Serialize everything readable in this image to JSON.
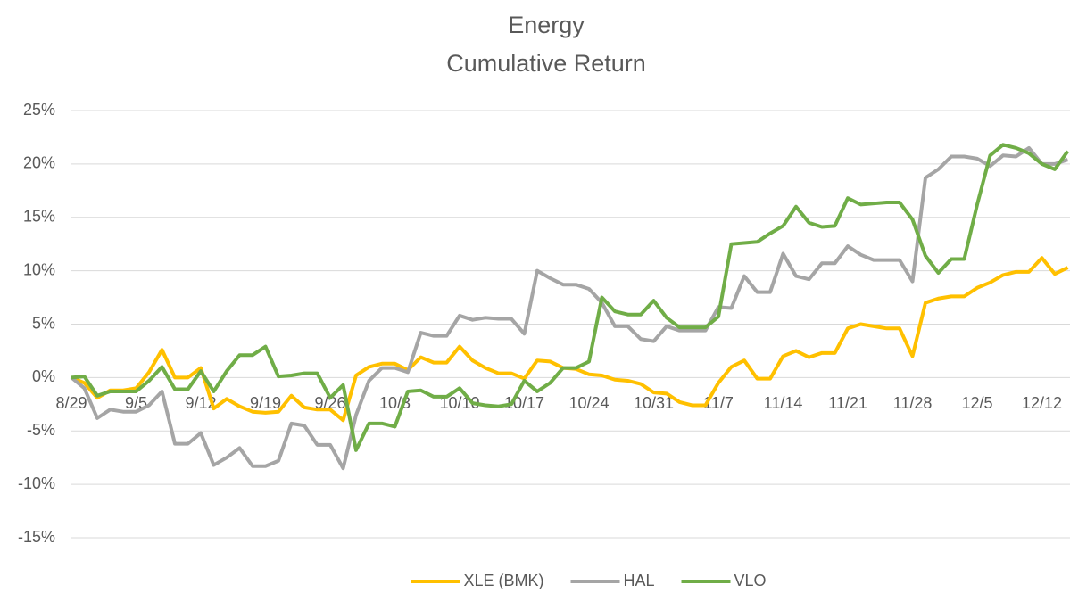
{
  "chart_data": {
    "type": "line",
    "title": "Energy",
    "subtitle": "Cumulative Return",
    "categories": [
      "8/29",
      null,
      null,
      null,
      null,
      "9/5",
      null,
      null,
      null,
      null,
      "9/12",
      null,
      null,
      null,
      null,
      "9/19",
      null,
      null,
      null,
      null,
      "9/26",
      null,
      null,
      null,
      null,
      "10/3",
      null,
      null,
      null,
      null,
      "10/10",
      null,
      null,
      null,
      null,
      "10/17",
      null,
      null,
      null,
      null,
      "10/24",
      null,
      null,
      null,
      null,
      "10/31",
      null,
      null,
      null,
      null,
      "11/7",
      null,
      null,
      null,
      null,
      "11/14",
      null,
      null,
      null,
      null,
      "11/21",
      null,
      null,
      null,
      null,
      "11/28",
      null,
      null,
      null,
      null,
      "12/5",
      null,
      null,
      null,
      null,
      "12/12",
      null,
      null
    ],
    "series": [
      {
        "name": "XLE (BMK)",
        "color": "#ffc000",
        "values": [
          0,
          -0.5,
          -1.9,
          -1.2,
          -1.2,
          -1.0,
          0.5,
          2.6,
          0,
          0,
          0.9,
          -2.9,
          -2.0,
          -2.7,
          -3.2,
          -3.3,
          -3.2,
          -1.7,
          -2.8,
          -3.0,
          -3.0,
          -4.0,
          0.2,
          1.0,
          1.3,
          1.3,
          0.7,
          1.9,
          1.4,
          1.4,
          2.9,
          1.6,
          0.9,
          0.4,
          0.4,
          -0.1,
          1.6,
          1.5,
          0.9,
          0.8,
          0.3,
          0.2,
          -0.2,
          -0.3,
          -0.6,
          -1.4,
          -1.5,
          -2.3,
          -2.6,
          -2.6,
          -0.5,
          1.0,
          1.6,
          -0.1,
          -0.1,
          2.0,
          2.5,
          1.9,
          2.3,
          2.3,
          4.6,
          5.0,
          4.8,
          4.6,
          4.6,
          2.0,
          7.0,
          7.4,
          7.6,
          7.6,
          8.4,
          8.9,
          9.6,
          9.9,
          9.9,
          11.2,
          9.7,
          10.3
        ]
      },
      {
        "name": "HAL",
        "color": "#a5a5a5",
        "values": [
          0,
          -1,
          -3.8,
          -3.0,
          -3.2,
          -3.2,
          -2.6,
          -1.3,
          -6.2,
          -6.2,
          -5.2,
          -8.2,
          -7.5,
          -6.6,
          -8.3,
          -8.3,
          -7.8,
          -4.3,
          -4.5,
          -6.3,
          -6.3,
          -8.5,
          -3.5,
          -0.3,
          0.9,
          0.9,
          0.5,
          4.2,
          3.9,
          3.9,
          5.8,
          5.4,
          5.6,
          5.5,
          5.5,
          4.1,
          10.0,
          9.3,
          8.7,
          8.7,
          8.3,
          7.0,
          4.8,
          4.8,
          3.6,
          3.4,
          4.8,
          4.4,
          4.4,
          4.4,
          6.6,
          6.5,
          9.5,
          8.0,
          8.0,
          11.6,
          9.5,
          9.2,
          10.7,
          10.7,
          12.3,
          11.5,
          11.0,
          11.0,
          11.0,
          9.0,
          18.7,
          19.5,
          20.7,
          20.7,
          20.5,
          19.8,
          20.8,
          20.7,
          21.5,
          20.0,
          20.0,
          20.4
        ]
      },
      {
        "name": "VLO",
        "color": "#70ad47",
        "values": [
          0,
          0.1,
          -1.7,
          -1.3,
          -1.3,
          -1.3,
          -0.3,
          1.0,
          -1.1,
          -1.1,
          0.6,
          -1.3,
          0.6,
          2.1,
          2.1,
          2.9,
          0.1,
          0.2,
          0.4,
          0.4,
          -1.9,
          -0.7,
          -6.8,
          -4.3,
          -4.3,
          -4.6,
          -1.3,
          -1.2,
          -1.8,
          -1.8,
          -1.0,
          -2.4,
          -2.6,
          -2.7,
          -2.5,
          -0.3,
          -1.3,
          -0.5,
          0.9,
          0.9,
          1.5,
          7.5,
          6.2,
          5.9,
          5.9,
          7.2,
          5.6,
          4.7,
          4.7,
          4.7,
          5.7,
          12.5,
          12.6,
          12.7,
          13.5,
          14.2,
          16.0,
          14.5,
          14.1,
          14.2,
          16.8,
          16.2,
          16.3,
          16.4,
          16.4,
          14.8,
          11.4,
          9.8,
          11.1,
          11.1,
          16.2,
          20.8,
          21.8,
          21.5,
          21.0,
          20.0,
          19.5,
          21.2
        ]
      }
    ],
    "ylim": [
      -15,
      25
    ],
    "yticks": [
      {
        "value": 25,
        "label": "25%"
      },
      {
        "value": 20,
        "label": "20%"
      },
      {
        "value": 15,
        "label": "15%"
      },
      {
        "value": 10,
        "label": "10%"
      },
      {
        "value": 5,
        "label": "5%"
      },
      {
        "value": 0,
        "label": "0%"
      },
      {
        "value": -5,
        "label": "-5%"
      },
      {
        "value": -10,
        "label": "-10%"
      },
      {
        "value": -15,
        "label": "-15%"
      }
    ],
    "grid": true,
    "legend": "bottom"
  }
}
